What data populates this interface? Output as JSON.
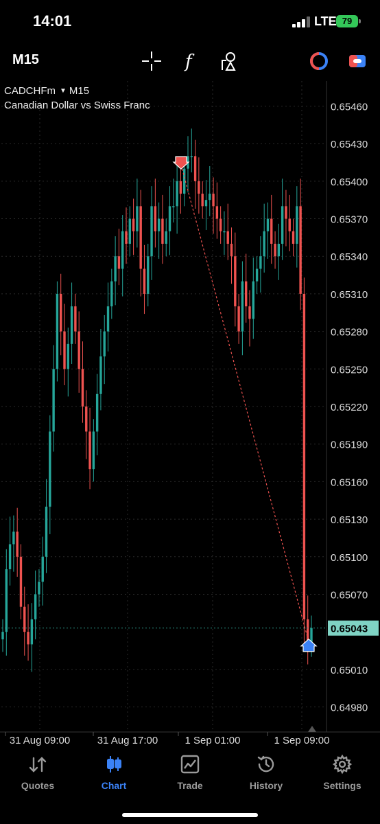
{
  "status_bar": {
    "time": "14:01",
    "network": "LTE",
    "battery": "79"
  },
  "toolbar": {
    "timeframe": "M15",
    "tools": [
      "crosshair-icon",
      "indicators-icon",
      "objects-icon",
      "color-scheme-icon",
      "trade-toggle-icon"
    ]
  },
  "chart": {
    "symbol": "CADCHFm",
    "timeframe": "M15",
    "description": "Canadian Dollar vs Swiss Franc",
    "current_price": "0.65043",
    "colors": {
      "up": "#26a69a",
      "down": "#ef5350",
      "bid_line": "#2f9e8f",
      "trade_line": "#ef5350",
      "grid": "#2a2a2a"
    }
  },
  "chart_data": {
    "type": "candlestick",
    "ylim": [
      0.6496,
      0.6548
    ],
    "price_ticks": [
      "0.65460",
      "0.65430",
      "0.65400",
      "0.65370",
      "0.65340",
      "0.65310",
      "0.65280",
      "0.65250",
      "0.65220",
      "0.65190",
      "0.65160",
      "0.65130",
      "0.65100",
      "0.65070",
      "0.65010",
      "0.64980"
    ],
    "time_ticks": [
      "31 Aug 09:00",
      "31 Aug 17:00",
      "1 Sep 01:00",
      "1 Sep 09:00"
    ],
    "closes": [
      0.6504,
      0.6509,
      0.6511,
      0.6512,
      0.651,
      0.6506,
      0.6504,
      0.6503,
      0.6505,
      0.6507,
      0.6508,
      0.651,
      0.6514,
      0.652,
      0.6525,
      0.6531,
      0.6528,
      0.6525,
      0.6527,
      0.653,
      0.6528,
      0.6525,
      0.6522,
      0.652,
      0.6517,
      0.652,
      0.6523,
      0.6526,
      0.6528,
      0.653,
      0.6532,
      0.6534,
      0.6533,
      0.6536,
      0.6535,
      0.6537,
      0.6536,
      0.6538,
      0.6533,
      0.6531,
      0.6534,
      0.6538,
      0.6536,
      0.6537,
      0.6535,
      0.6536,
      0.6538,
      0.6538,
      0.654,
      0.6539,
      0.6541,
      0.6542,
      0.6542,
      0.654,
      0.6539,
      0.6538,
      0.65385,
      0.6539,
      0.6538,
      0.6537,
      0.6536,
      0.6536,
      0.6535,
      0.6534,
      0.653,
      0.6528,
      0.6532,
      0.653,
      0.6529,
      0.6532,
      0.6533,
      0.6534,
      0.6536,
      0.6537,
      0.6535,
      0.6534,
      0.6535,
      0.6538,
      0.6537,
      0.6536,
      0.6535,
      0.6538,
      0.6531,
      0.6505,
      0.6503,
      0.65043
    ]
  },
  "trade": {
    "entry_price": 0.65413,
    "exit_price": 0.65032
  },
  "tabs": [
    {
      "label": "Quotes",
      "icon": "quotes-arrows-icon"
    },
    {
      "label": "Chart",
      "icon": "candlestick-icon"
    },
    {
      "label": "Trade",
      "icon": "trade-chart-icon"
    },
    {
      "label": "History",
      "icon": "history-clock-icon"
    },
    {
      "label": "Settings",
      "icon": "gear-icon"
    }
  ],
  "active_tab": "Chart"
}
